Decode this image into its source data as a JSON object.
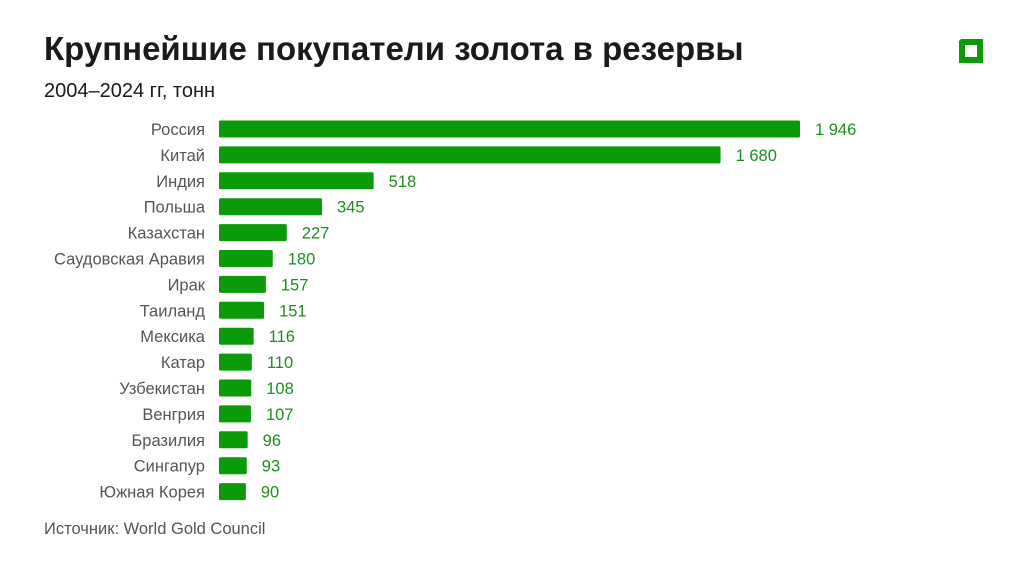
{
  "title": "Крупнейшие покупатели золота в резервы",
  "subtitle": "2004–2024 гг, тонн",
  "source": "Источник: World Gold Council",
  "logo_icon": "square-frame-logo-icon",
  "colors": {
    "bar": "#0a9a0a",
    "value_label": "#1e8f1e",
    "text": "#1a1a1a",
    "muted": "#555555"
  },
  "chart_data": {
    "type": "bar",
    "orientation": "horizontal",
    "title": "Крупнейшие покупатели золота в резервы",
    "subtitle": "2004–2024 гг, тонн",
    "categories": [
      "Россия",
      "Китай",
      "Индия",
      "Польша",
      "Казахстан",
      "Саудовская Аравия",
      "Ирак",
      "Таиланд",
      "Мексика",
      "Катар",
      "Узбекистан",
      "Венгрия",
      "Бразилия",
      "Сингапур",
      "Южная Корея"
    ],
    "values": [
      1946,
      1680,
      518,
      345,
      227,
      180,
      157,
      151,
      116,
      110,
      108,
      107,
      96,
      93,
      90
    ],
    "value_labels": [
      "1 946",
      "1 680",
      "518",
      "345",
      "227",
      "180",
      "157",
      "151",
      "116",
      "110",
      "108",
      "107",
      "96",
      "93",
      "90"
    ],
    "xlim": [
      0,
      1946
    ],
    "grid": false,
    "legend": "none"
  }
}
